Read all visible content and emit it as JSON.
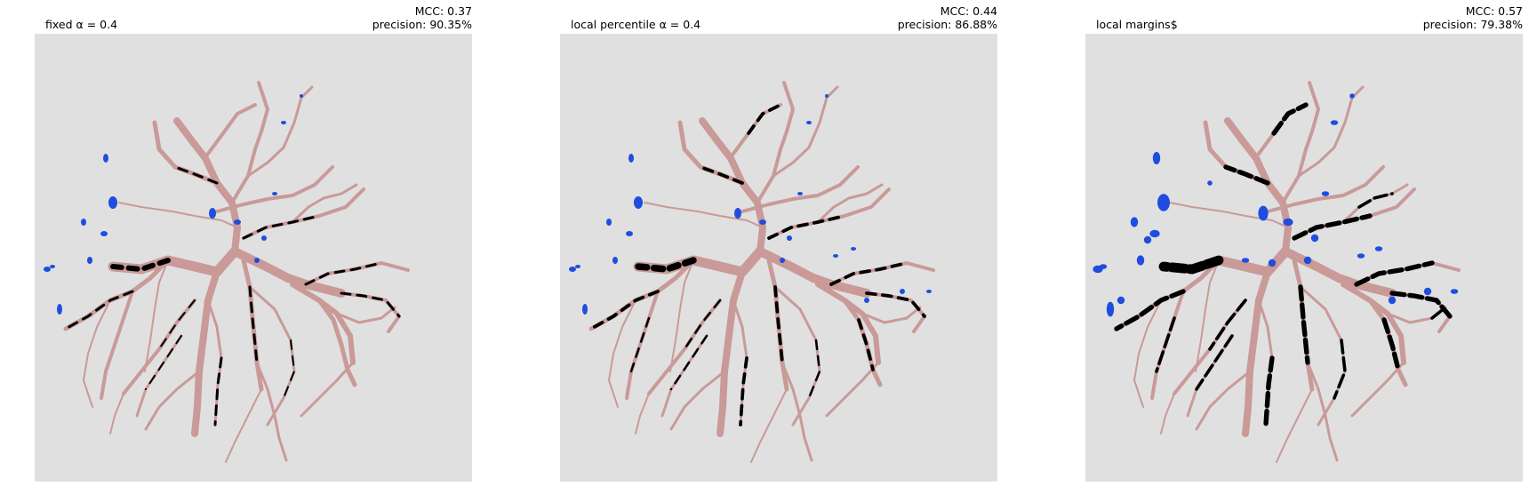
{
  "colors": {
    "background": "#e0e0e0",
    "vessel": "#c99a98",
    "segmentation_match": "#000000",
    "false_positive": "#1f4de0"
  },
  "panels": [
    {
      "title": "fixed α = 0.4",
      "mcc": "MCC: 0.37",
      "precision": "precision: 90.35%"
    },
    {
      "title": "local percentile α = 0.4",
      "mcc": "MCC: 0.44",
      "precision": "precision: 86.88%"
    },
    {
      "title": "local margins$",
      "mcc": "MCC: 0.57",
      "precision": "precision: 79.38%"
    }
  ]
}
